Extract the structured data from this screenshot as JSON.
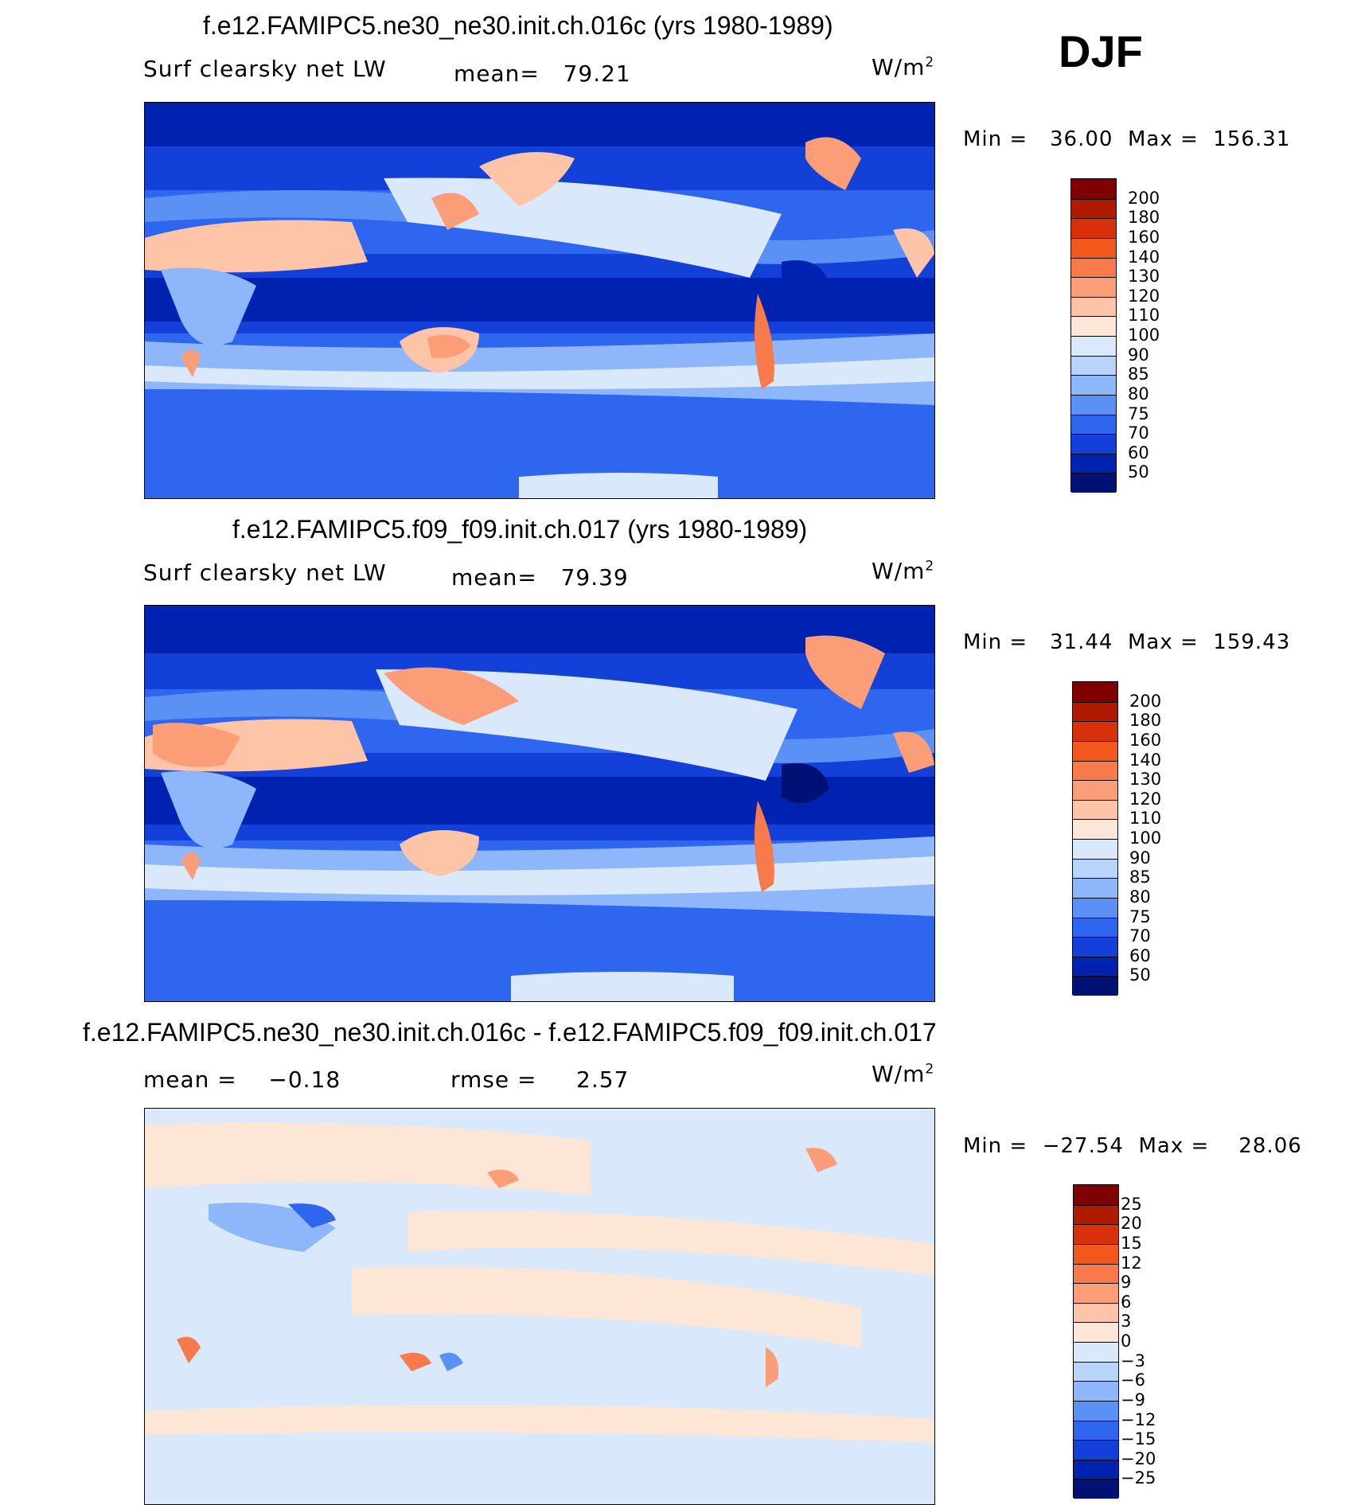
{
  "season": "DJF",
  "units": {
    "base": "W/m",
    "exp": "2"
  },
  "panels": [
    {
      "title": "f.e12.FAMIPC5.ne30_ne30.init.ch.016c (yrs 1980-1989)",
      "variable": "Surf clearsky net LW",
      "mean_label": "mean=",
      "mean_value": "79.21",
      "min_label": "Min =",
      "min_value": "36.00",
      "max_label": "Max =",
      "max_value": "156.31"
    },
    {
      "title": "f.e12.FAMIPC5.f09_f09.init.ch.017 (yrs 1980-1989)",
      "variable": "Surf clearsky net LW",
      "mean_label": "mean=",
      "mean_value": "79.39",
      "min_label": "Min =",
      "min_value": "31.44",
      "max_label": "Max =",
      "max_value": "159.43"
    },
    {
      "title": "f.e12.FAMIPC5.ne30_ne30.init.ch.016c - f.e12.FAMIPC5.f09_f09.init.ch.017",
      "mean_label": "mean =",
      "mean_value": "−0.18",
      "rmse_label": "rmse =",
      "rmse_value": "2.57",
      "min_label": "Min =",
      "min_value": "−27.54",
      "max_label": "Max =",
      "max_value": "28.06"
    }
  ],
  "colorbars": {
    "absolute": {
      "labels": [
        "200",
        "180",
        "160",
        "140",
        "130",
        "120",
        "110",
        "100",
        "90",
        "85",
        "80",
        "75",
        "70",
        "60",
        "50"
      ],
      "colors": [
        "#800000",
        "#b01a00",
        "#d8300a",
        "#f2581c",
        "#f8794a",
        "#fb9e78",
        "#fdc4a8",
        "#fde6d6",
        "#d9e9fb",
        "#b8d4fb",
        "#8db7fa",
        "#5b90f5",
        "#2f66ef",
        "#1240d8",
        "#0022b0",
        "#001175"
      ]
    },
    "difference": {
      "labels": [
        "25",
        "20",
        "15",
        "12",
        "9",
        "6",
        "3",
        "0",
        "−3",
        "−6",
        "−9",
        "−12",
        "−15",
        "−20",
        "−25"
      ],
      "colors": [
        "#800000",
        "#b01a00",
        "#d8300a",
        "#f2581c",
        "#f8794a",
        "#fb9e78",
        "#fdc4a8",
        "#fde6d6",
        "#d9e9fb",
        "#b8d4fb",
        "#8db7fa",
        "#5b90f5",
        "#2f66ef",
        "#1240d8",
        "#0022b0",
        "#001175"
      ]
    }
  }
}
